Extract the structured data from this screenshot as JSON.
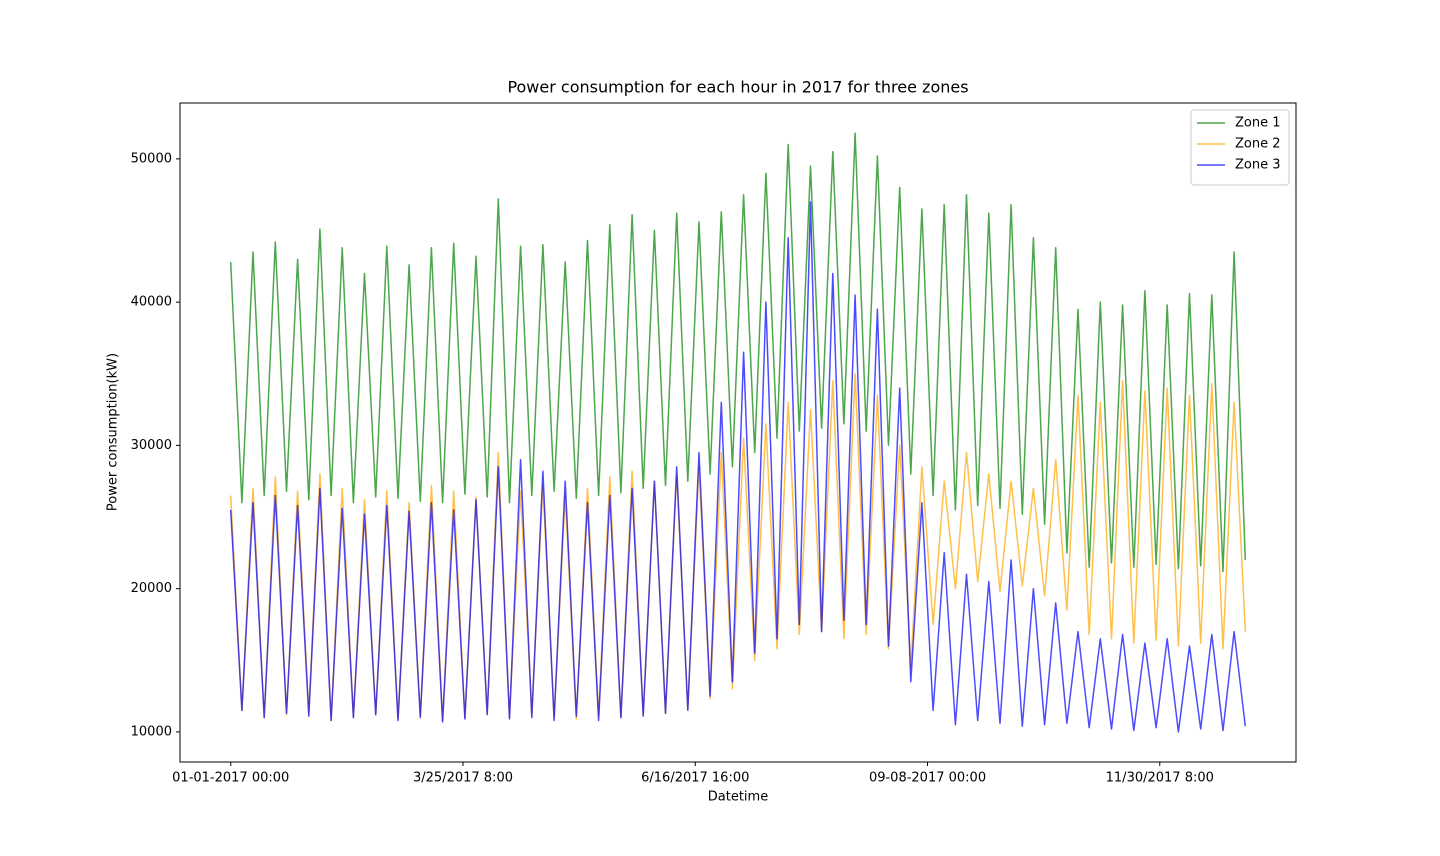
{
  "chart_data": {
    "type": "line",
    "title": "Power consumption for each hour in 2017 for three zones",
    "x_label": "Datetime",
    "y_label": "Power consumption(kW)",
    "x": [
      0,
      96,
      192,
      288,
      384,
      480,
      576,
      672,
      768,
      864,
      960,
      1056,
      1152,
      1248,
      1344,
      1440,
      1536,
      1632,
      1728,
      1824,
      1920,
      2016,
      2112,
      2208,
      2304,
      2400,
      2496,
      2592,
      2688,
      2784,
      2880,
      2976,
      3072,
      3168,
      3264,
      3360,
      3456,
      3552,
      3648,
      3744,
      3840,
      3936,
      4032,
      4128,
      4224,
      4320,
      4416,
      4512,
      4608,
      4704,
      4800,
      4896,
      4992,
      5088,
      5184,
      5280,
      5376,
      5472,
      5568,
      5664,
      5760,
      5856,
      5952,
      6048,
      6144,
      6240,
      6336,
      6432,
      6528,
      6624,
      6720,
      6816,
      6912,
      7008,
      7104,
      7200,
      7296,
      7392,
      7488,
      7584,
      7680,
      7776,
      7872,
      7968,
      8064,
      8160,
      8256,
      8352,
      8448,
      8544,
      8640,
      8736
    ],
    "series": [
      {
        "name": "Zone 1",
        "color": "#008000",
        "values": [
          42800,
          26000,
          43500,
          26500,
          44200,
          26800,
          43000,
          26200,
          45100,
          26500,
          43800,
          26000,
          42000,
          26400,
          43900,
          26300,
          42600,
          26100,
          43800,
          26000,
          44100,
          26600,
          43200,
          26400,
          47200,
          26000,
          43900,
          26500,
          44000,
          26800,
          42800,
          26300,
          44300,
          26500,
          45400,
          26700,
          46100,
          27000,
          45000,
          27200,
          46200,
          27500,
          45600,
          28000,
          46300,
          28500,
          47500,
          29500,
          49000,
          30500,
          51000,
          31000,
          49500,
          31200,
          50500,
          31500,
          51800,
          31000,
          50200,
          30000,
          48000,
          28000,
          46500,
          26500,
          46800,
          25500,
          47500,
          25800,
          46200,
          25600,
          46800,
          25200,
          44500,
          24500,
          43800,
          22500,
          39500,
          21500,
          40000,
          21800,
          39800,
          21500,
          40800,
          21700,
          39800,
          21400,
          40600,
          21600,
          40500,
          21200,
          43500,
          22000
        ]
      },
      {
        "name": "Zone 2",
        "color": "#ffa500",
        "values": [
          26500,
          11500,
          27000,
          11000,
          27800,
          11200,
          26800,
          11300,
          28000,
          10800,
          27000,
          11000,
          26200,
          11200,
          26800,
          10900,
          26000,
          11100,
          27200,
          10800,
          26800,
          11000,
          26400,
          11300,
          29500,
          11000,
          26800,
          11200,
          27200,
          11000,
          26500,
          10900,
          27000,
          11100,
          27800,
          11000,
          28200,
          11200,
          27500,
          11300,
          28000,
          11600,
          28500,
          12300,
          29500,
          13000,
          30500,
          15000,
          31500,
          15800,
          33000,
          16800,
          32500,
          17000,
          34500,
          16500,
          35000,
          16800,
          33500,
          15800,
          30000,
          14500,
          28500,
          17500,
          27500,
          20000,
          29500,
          20500,
          28000,
          19800,
          27500,
          20200,
          27000,
          19500,
          29000,
          18500,
          33500,
          16800,
          33000,
          16500,
          34500,
          16200,
          33800,
          16400,
          34000,
          16000,
          33500,
          16200,
          34300,
          15800,
          33000,
          17000
        ]
      },
      {
        "name": "Zone 3",
        "color": "#0000ff",
        "values": [
          25500,
          11500,
          26000,
          11000,
          26500,
          11300,
          25800,
          11100,
          27000,
          10800,
          25600,
          11000,
          25200,
          11200,
          25800,
          10800,
          25400,
          11000,
          26000,
          10700,
          25500,
          10900,
          26200,
          11200,
          28500,
          10900,
          29000,
          11000,
          28200,
          10800,
          27500,
          11100,
          26000,
          10800,
          26500,
          11000,
          27000,
          11100,
          27500,
          11300,
          28500,
          11500,
          29500,
          12500,
          33000,
          13500,
          36500,
          15500,
          40000,
          16500,
          44500,
          17500,
          47000,
          17000,
          42000,
          17800,
          40500,
          17500,
          39500,
          16000,
          34000,
          13500,
          26000,
          11500,
          22500,
          10500,
          21000,
          10800,
          20500,
          10600,
          22000,
          10400,
          20000,
          10500,
          19000,
          10600,
          17000,
          10300,
          16500,
          10200,
          16800,
          10100,
          16200,
          10300,
          16500,
          10000,
          16000,
          10200,
          16800,
          10100,
          17000,
          10400
        ]
      }
    ],
    "alpha": 0.7,
    "xlim": [
      -437,
      9173
    ],
    "xticks": [
      {
        "value": 0,
        "label": "01-01-2017 00:00"
      },
      {
        "value": 2000,
        "label": "3/25/2017 8:00"
      },
      {
        "value": 4000,
        "label": "6/16/2017 16:00"
      },
      {
        "value": 6000,
        "label": "09-08-2017 00:00"
      },
      {
        "value": 8000,
        "label": "11/30/2017 8:00"
      }
    ],
    "ylim": [
      7900,
      53900
    ],
    "yticks": [
      10000,
      20000,
      30000,
      40000,
      50000
    ],
    "legend": "upper right"
  }
}
